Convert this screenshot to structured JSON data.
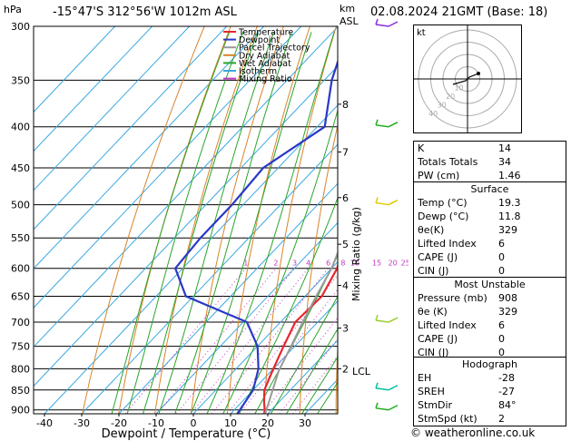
{
  "header": {
    "hpa_unit": "hPa",
    "location": "-15°47'S  312°56'W  1012m  ASL",
    "km_unit": "km",
    "asl_label": "ASL",
    "datetime": "02.08.2024  21GMT  (Base: 18)"
  },
  "chart_data": {
    "type": "line",
    "title": "-15°47'S  312°56'W  1012m  ASL",
    "xlabel": "Dewpoint / Temperature (°C)",
    "ylabel": "hPa",
    "right_axis_label": "Mixing Ratio (g/kg)",
    "xlim": [
      -45,
      38
    ],
    "ylim": [
      910,
      300
    ],
    "x_ticks": [
      -40,
      -30,
      -20,
      -10,
      0,
      10,
      20,
      30
    ],
    "pressure_levels": [
      300,
      350,
      400,
      450,
      500,
      550,
      600,
      650,
      700,
      750,
      800,
      850,
      900
    ],
    "km_ticks": [
      {
        "km": "8",
        "p": 375
      },
      {
        "km": "7",
        "p": 430
      },
      {
        "km": "6",
        "p": 490
      },
      {
        "km": "5",
        "p": 560
      },
      {
        "km": "4",
        "p": 630
      },
      {
        "km": "3",
        "p": 712
      },
      {
        "km": "2",
        "p": 800
      }
    ],
    "lcl": {
      "label": "LCL",
      "p": 805
    },
    "mixing_ratio_labels": [
      {
        "label": "1",
        "value": 1
      },
      {
        "label": "2",
        "value": 2
      },
      {
        "label": "3",
        "value": 3
      },
      {
        "label": "4",
        "value": 4
      },
      {
        "label": "6",
        "value": 6
      },
      {
        "label": "8",
        "value": 8
      },
      {
        "label": "10",
        "value": 10
      },
      {
        "label": "15",
        "value": 15
      },
      {
        "label": "20",
        "value": 20
      },
      {
        "label": "25",
        "value": 25
      }
    ],
    "series": [
      {
        "name": "Temperature",
        "color": "#e8262c",
        "points": [
          [
            910,
            19.3
          ],
          [
            880,
            16
          ],
          [
            850,
            13
          ],
          [
            800,
            10
          ],
          [
            750,
            7
          ],
          [
            700,
            4
          ],
          [
            650,
            4.5
          ],
          [
            600,
            1.5
          ],
          [
            550,
            -4
          ],
          [
            500,
            -10
          ],
          [
            450,
            -16
          ],
          [
            400,
            -24
          ],
          [
            350,
            -33
          ],
          [
            300,
            -43
          ]
        ]
      },
      {
        "name": "Dewpoint",
        "color": "#2a39c7",
        "points": [
          [
            910,
            11.8
          ],
          [
            850,
            10
          ],
          [
            800,
            6
          ],
          [
            750,
            0
          ],
          [
            700,
            -9
          ],
          [
            650,
            -32
          ],
          [
            600,
            -42
          ],
          [
            550,
            -43
          ],
          [
            500,
            -43
          ],
          [
            450,
            -44
          ],
          [
            400,
            -38
          ],
          [
            350,
            -48
          ],
          [
            300,
            -57
          ]
        ]
      },
      {
        "name": "Parcel Trajectory",
        "color": "#9a9a9a",
        "points": [
          [
            910,
            19.3
          ],
          [
            805,
            12
          ],
          [
            750,
            9
          ],
          [
            700,
            6
          ],
          [
            650,
            3
          ],
          [
            600,
            0
          ],
          [
            550,
            -4.5
          ],
          [
            500,
            -10
          ],
          [
            450,
            -16
          ],
          [
            400,
            -23
          ],
          [
            350,
            -32
          ],
          [
            300,
            -43
          ]
        ]
      }
    ],
    "legend": {
      "placement": "top-left",
      "items": [
        {
          "name": "Temperature",
          "color": "#e8262c"
        },
        {
          "name": "Dewpoint",
          "color": "#2a39c7"
        },
        {
          "name": "Parcel Trajectory",
          "color": "#9a9a9a"
        },
        {
          "name": "Dry Adiabat",
          "color": "#d8842a"
        },
        {
          "name": "Wet Adiabat",
          "color": "#2aa52a"
        },
        {
          "name": "Isotherm",
          "color": "#3aa8e0"
        },
        {
          "name": "Mixing Ratio",
          "color": "#c03ac0"
        }
      ]
    },
    "wind_barbs": [
      {
        "p": 300,
        "color": "#8a2be2"
      },
      {
        "p": 400,
        "color": "#1fae1f"
      },
      {
        "p": 500,
        "color": "#e0c800"
      },
      {
        "p": 700,
        "color": "#9acd32"
      },
      {
        "p": 850,
        "color": "#00c0a0"
      },
      {
        "p": 900,
        "color": "#1fae1f"
      }
    ]
  },
  "hodograph": {
    "unit": "kt",
    "ring_labels": [
      "10",
      "20",
      "30",
      "40"
    ]
  },
  "indices": [
    {
      "key": "K",
      "value": "14"
    },
    {
      "key": "Totals Totals",
      "value": "34"
    },
    {
      "key": "PW (cm)",
      "value": "1.46"
    }
  ],
  "surface": {
    "title": "Surface",
    "rows": [
      {
        "key": "Temp (°C)",
        "value": "19.3"
      },
      {
        "key": "Dewp (°C)",
        "value": "11.8"
      },
      {
        "key": "θe(K)",
        "value": "329"
      },
      {
        "key": "Lifted Index",
        "value": "6"
      },
      {
        "key": "CAPE (J)",
        "value": "0"
      },
      {
        "key": "CIN (J)",
        "value": "0"
      }
    ]
  },
  "most_unstable": {
    "title": "Most Unstable",
    "rows": [
      {
        "key": "Pressure (mb)",
        "value": "908"
      },
      {
        "key": "θe (K)",
        "value": "329"
      },
      {
        "key": "Lifted Index",
        "value": "6"
      },
      {
        "key": "CAPE (J)",
        "value": "0"
      },
      {
        "key": "CIN (J)",
        "value": "0"
      }
    ]
  },
  "hodograph_indices": {
    "title": "Hodograph",
    "rows": [
      {
        "key": "EH",
        "value": "-28"
      },
      {
        "key": "SREH",
        "value": "-27"
      },
      {
        "key": "StmDir",
        "value": "84°"
      },
      {
        "key": "StmSpd (kt)",
        "value": "2"
      }
    ]
  },
  "footer": {
    "copyright": "© weatheronline.co.uk"
  }
}
